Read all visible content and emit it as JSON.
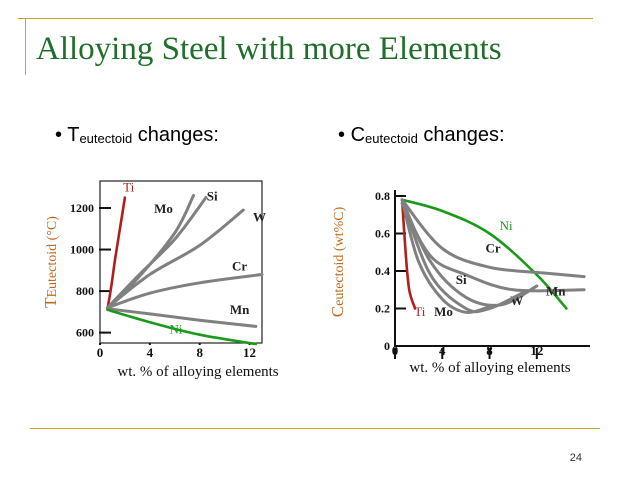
{
  "slide": {
    "title": "Alloying Steel with more Elements",
    "number": "24",
    "bullets": [
      {
        "prefix": "T",
        "sub": "eutectoid",
        "text": " changes:"
      },
      {
        "prefix": "C",
        "sub": "eutectoid",
        "text": " changes:"
      }
    ],
    "colors": {
      "title": "#1f6f2a",
      "rule": "#c9a227",
      "ylabel": "#c0681a",
      "red": "#b01e1e",
      "green": "#1a9a1a",
      "gray": "#808080"
    }
  },
  "chart_data": [
    {
      "type": "line",
      "xlabel": "wt. % of alloying elements",
      "ylabel_main": "T",
      "ylabel_sub": "Eutectoid",
      "ylabel_unit": "(°C)",
      "x_ticks": [
        "0",
        "4",
        "8",
        "12"
      ],
      "y_ticks": [
        "600",
        "800",
        "1000",
        "1200"
      ],
      "xlim": [
        0,
        13
      ],
      "ylim": [
        550,
        1330
      ],
      "series": [
        {
          "name": "Ti",
          "color": "red",
          "x": [
            0.6,
            0.9,
            1.2,
            1.6,
            2.0
          ],
          "y": [
            715,
            820,
            950,
            1100,
            1250
          ],
          "label_at": [
            2.3,
            1280
          ]
        },
        {
          "name": "Mo",
          "color": "gray",
          "x": [
            0.6,
            3,
            6,
            7.5
          ],
          "y": [
            720,
            860,
            1080,
            1260
          ],
          "label_at": [
            5.1,
            1175
          ]
        },
        {
          "name": "Si",
          "color": "gray",
          "x": [
            0.6,
            3,
            6,
            8.5
          ],
          "y": [
            720,
            870,
            1050,
            1250
          ],
          "label_at": [
            9.0,
            1235
          ]
        },
        {
          "name": "W",
          "color": "gray",
          "x": [
            0.6,
            4,
            8,
            11.5
          ],
          "y": [
            720,
            880,
            1020,
            1190
          ],
          "label_at": [
            12.8,
            1135
          ]
        },
        {
          "name": "Cr",
          "color": "gray",
          "x": [
            0.6,
            4,
            8,
            13
          ],
          "y": [
            720,
            790,
            840,
            880
          ],
          "label_at": [
            11.2,
            900
          ]
        },
        {
          "name": "Mn",
          "color": "gray",
          "x": [
            0.6,
            4,
            8,
            12.5
          ],
          "y": [
            715,
            690,
            660,
            630
          ],
          "label_at": [
            11.2,
            690
          ]
        },
        {
          "name": "Ni",
          "color": "green",
          "x": [
            0.6,
            4,
            8,
            12.5
          ],
          "y": [
            710,
            650,
            590,
            545
          ],
          "label_at": [
            6.1,
            595
          ]
        }
      ]
    },
    {
      "type": "line",
      "xlabel": "wt. % of alloying elements",
      "ylabel_main": "C",
      "ylabel_sub": "eutectoid",
      "ylabel_unit": "(wt%C)",
      "x_ticks": [
        "0",
        "4",
        "8",
        "12"
      ],
      "y_ticks": [
        "0",
        "0.2",
        "0.4",
        "0.6",
        "0.8"
      ],
      "xlim": [
        0,
        16.5
      ],
      "ylim": [
        0,
        0.8
      ],
      "series": [
        {
          "name": "Ti",
          "color": "red",
          "x": [
            0.6,
            0.9,
            1.2,
            1.7
          ],
          "y": [
            0.78,
            0.5,
            0.3,
            0.2
          ],
          "label_at": [
            2.1,
            0.16
          ]
        },
        {
          "name": "Ni",
          "color": "green",
          "x": [
            0.6,
            4,
            8,
            12,
            14.5
          ],
          "y": [
            0.78,
            0.72,
            0.6,
            0.38,
            0.2
          ],
          "label_at": [
            9.4,
            0.62
          ]
        },
        {
          "name": "Cr",
          "color": "gray",
          "x": [
            0.6,
            4,
            8,
            12.5,
            16
          ],
          "y": [
            0.78,
            0.52,
            0.42,
            0.39,
            0.37
          ],
          "label_at": [
            8.3,
            0.5
          ]
        },
        {
          "name": "Si",
          "color": "gray",
          "x": [
            0.6,
            3,
            6,
            10,
            16
          ],
          "y": [
            0.76,
            0.48,
            0.38,
            0.3,
            0.3
          ],
          "label_at": [
            5.6,
            0.33
          ]
        },
        {
          "name": "Mo",
          "color": "gray",
          "x": [
            0.6,
            2,
            4,
            6,
            8
          ],
          "y": [
            0.78,
            0.45,
            0.25,
            0.18,
            0.21
          ],
          "label_at": [
            4.1,
            0.16
          ]
        },
        {
          "name": "W",
          "color": "gray",
          "x": [
            0.6,
            3,
            6,
            9,
            12
          ],
          "y": [
            0.78,
            0.45,
            0.26,
            0.22,
            0.32
          ],
          "label_at": [
            10.3,
            0.22
          ]
        },
        {
          "name": "Mn",
          "color": "gray",
          "x": [
            0.6,
            3,
            6,
            8,
            11
          ],
          "y": [
            0.78,
            0.38,
            0.2,
            0.2,
            0.29
          ],
          "label_at": [
            13.6,
            0.27
          ]
        }
      ]
    }
  ]
}
